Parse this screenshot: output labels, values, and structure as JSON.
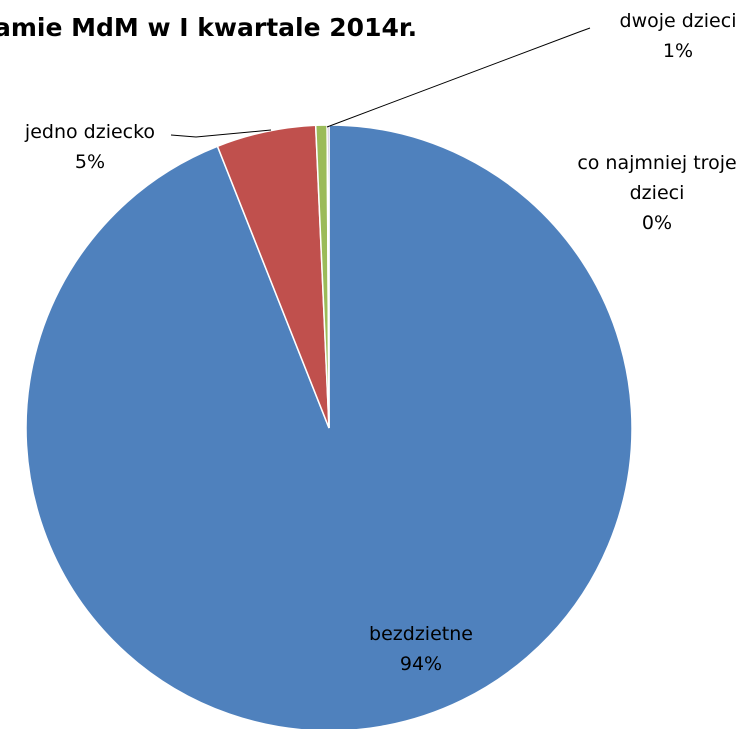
{
  "chart_data": {
    "type": "pie",
    "title": "amie MdM w I kwartale 2014r.",
    "slices": [
      {
        "name": "bezdzietne",
        "percent_label": "94%",
        "value": 94.0,
        "color": "#4F81BD"
      },
      {
        "name": "jedno dziecko",
        "percent_label": "5%",
        "value": 5.3,
        "color": "#C0504D"
      },
      {
        "name": "dwoje dzieci",
        "percent_label": "1%",
        "value": 0.6,
        "color": "#9BBB59"
      },
      {
        "name": "co najmniej troje dzieci",
        "name_lines": [
          "co najmniej troje",
          "dzieci"
        ],
        "percent_label": "0%",
        "value": 0.1,
        "color": "#8064A2"
      }
    ],
    "legend": "none"
  }
}
